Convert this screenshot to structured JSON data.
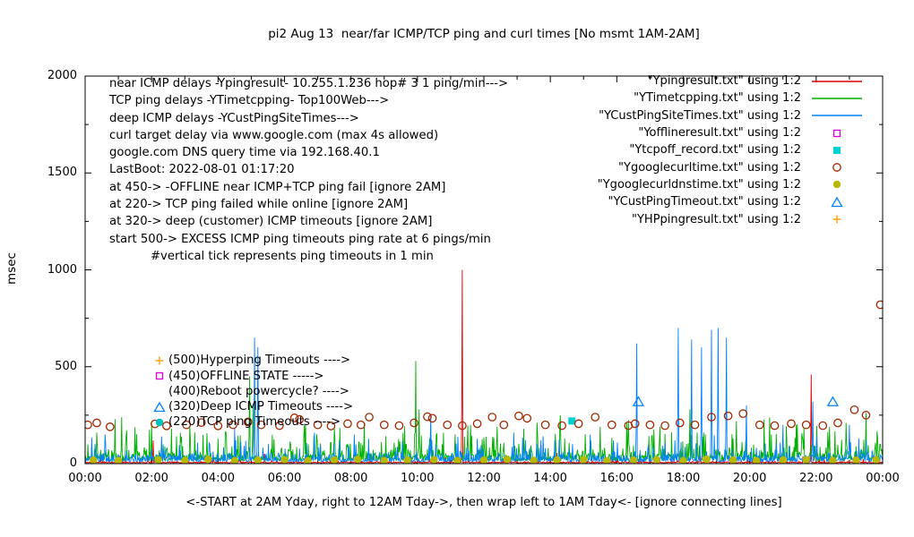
{
  "chart_data": {
    "type": "line",
    "title": "pi2 Aug 13  near/far ICMP/TCP ping and curl times [No msmt 1AM-2AM]",
    "ylabel": "msec",
    "xlabel": "<-START at 2AM Yday, right to 12AM Tday->, then wrap left to 1AM Tday<- [ignore connecting lines]",
    "ylim": [
      0,
      2000
    ],
    "xlim_hours": [
      0,
      24
    ],
    "yticks": [
      0,
      500,
      1000,
      1500,
      2000
    ],
    "xticks": [
      "00:00",
      "02:00",
      "04:00",
      "06:00",
      "08:00",
      "10:00",
      "12:00",
      "14:00",
      "16:00",
      "18:00",
      "20:00",
      "22:00",
      "00:00"
    ],
    "legend_position": "top-right",
    "grid": false,
    "series": [
      {
        "name": "Ypingresult",
        "style": "line",
        "color": "#e00000",
        "seed": 11,
        "baseline": {
          "base": 4,
          "noise": 9,
          "spike_prob": 0.04,
          "spike_scale": 60
        },
        "spikes": [
          [
            2.05,
            120
          ],
          [
            11.35,
            1000
          ],
          [
            21.85,
            460
          ]
        ]
      },
      {
        "name": "YTimetcpping",
        "style": "line",
        "color": "#00b000",
        "seed": 22,
        "baseline": {
          "base": 15,
          "noise": 55,
          "spike_prob": 0.3,
          "spike_scale": 200
        },
        "spikes": [
          [
            0.35,
            160
          ],
          [
            0.9,
            230
          ],
          [
            1.1,
            240
          ],
          [
            2.0,
            210
          ],
          [
            2.6,
            180
          ],
          [
            3.3,
            160
          ],
          [
            4.95,
            450
          ],
          [
            5.05,
            300
          ],
          [
            6.6,
            200
          ],
          [
            7.5,
            180
          ],
          [
            8.4,
            210
          ],
          [
            9.95,
            530
          ],
          [
            10.05,
            280
          ],
          [
            11.6,
            200
          ],
          [
            12.4,
            190
          ],
          [
            13.2,
            180
          ],
          [
            14.3,
            250
          ],
          [
            15.5,
            190
          ],
          [
            16.3,
            210
          ],
          [
            17.3,
            190
          ],
          [
            18.2,
            280
          ],
          [
            19.6,
            220
          ],
          [
            20.6,
            240
          ],
          [
            21.4,
            200
          ],
          [
            22.4,
            190
          ],
          [
            22.9,
            210
          ],
          [
            23.5,
            260
          ]
        ]
      },
      {
        "name": "YCustPingSiteTimes",
        "style": "line",
        "color": "#0080ff",
        "seed": 33,
        "baseline": {
          "base": 10,
          "noise": 45,
          "spike_prob": 0.22,
          "spike_scale": 130
        },
        "spikes": [
          [
            0.6,
            150
          ],
          [
            2.3,
            140
          ],
          [
            4.5,
            180
          ],
          [
            5.1,
            650
          ],
          [
            5.2,
            600
          ],
          [
            6.9,
            160
          ],
          [
            8.1,
            150
          ],
          [
            10.4,
            250
          ],
          [
            12.9,
            160
          ],
          [
            15.2,
            150
          ],
          [
            16.6,
            620
          ],
          [
            17.85,
            700
          ],
          [
            18.25,
            640
          ],
          [
            18.55,
            600
          ],
          [
            18.85,
            690
          ],
          [
            19.05,
            700
          ],
          [
            19.3,
            650
          ],
          [
            19.9,
            300
          ],
          [
            21.0,
            200
          ],
          [
            21.9,
            320
          ],
          [
            23.0,
            200
          ]
        ]
      },
      {
        "name": "Yofflineresult",
        "style": "points",
        "marker": "open-square",
        "color": "#e000e0",
        "points": []
      },
      {
        "name": "Ytcpoff_record",
        "style": "points",
        "marker": "filled-square",
        "color": "#00d0d0",
        "points": [
          [
            14.65,
            220
          ]
        ]
      },
      {
        "name": "Ygooglecurltime",
        "style": "points",
        "marker": "open-circle",
        "color": "#a02800",
        "points": [
          [
            0.08,
            200
          ],
          [
            0.35,
            210
          ],
          [
            0.75,
            190
          ],
          [
            2.1,
            205
          ],
          [
            2.45,
            195
          ],
          [
            3.05,
            200
          ],
          [
            3.5,
            212
          ],
          [
            4.0,
            195
          ],
          [
            4.45,
            200
          ],
          [
            4.9,
            215
          ],
          [
            5.3,
            200
          ],
          [
            5.85,
            196
          ],
          [
            6.3,
            236
          ],
          [
            6.45,
            228
          ],
          [
            7.0,
            200
          ],
          [
            7.4,
            194
          ],
          [
            7.9,
            206
          ],
          [
            8.3,
            200
          ],
          [
            8.55,
            240
          ],
          [
            9.0,
            200
          ],
          [
            9.45,
            196
          ],
          [
            9.9,
            210
          ],
          [
            10.3,
            242
          ],
          [
            10.45,
            234
          ],
          [
            10.9,
            200
          ],
          [
            11.35,
            196
          ],
          [
            11.8,
            206
          ],
          [
            12.25,
            240
          ],
          [
            12.6,
            200
          ],
          [
            13.05,
            246
          ],
          [
            13.3,
            234
          ],
          [
            13.85,
            200
          ],
          [
            14.35,
            196
          ],
          [
            14.85,
            206
          ],
          [
            15.35,
            240
          ],
          [
            15.85,
            200
          ],
          [
            16.35,
            196
          ],
          [
            16.55,
            206
          ],
          [
            17.0,
            200
          ],
          [
            17.45,
            196
          ],
          [
            17.9,
            210
          ],
          [
            18.35,
            200
          ],
          [
            18.85,
            240
          ],
          [
            19.35,
            246
          ],
          [
            19.8,
            258
          ],
          [
            20.3,
            200
          ],
          [
            20.75,
            196
          ],
          [
            21.25,
            206
          ],
          [
            21.7,
            200
          ],
          [
            22.2,
            196
          ],
          [
            22.65,
            210
          ],
          [
            23.15,
            278
          ],
          [
            23.5,
            250
          ],
          [
            23.93,
            820
          ]
        ]
      },
      {
        "name": "Ygooglecurldnstime",
        "style": "points",
        "marker": "filled-circle",
        "color": "#b8b800",
        "points": [
          [
            0.25,
            18
          ],
          [
            1.0,
            15
          ],
          [
            2.2,
            20
          ],
          [
            3.0,
            16
          ],
          [
            3.7,
            22
          ],
          [
            4.5,
            15
          ],
          [
            5.2,
            18
          ],
          [
            6.0,
            20
          ],
          [
            6.7,
            15
          ],
          [
            7.5,
            18
          ],
          [
            8.2,
            22
          ],
          [
            9.0,
            16
          ],
          [
            9.7,
            18
          ],
          [
            10.5,
            20
          ],
          [
            11.2,
            15
          ],
          [
            12.0,
            18
          ],
          [
            12.7,
            22
          ],
          [
            13.5,
            16
          ],
          [
            14.2,
            18
          ],
          [
            15.0,
            20
          ],
          [
            15.7,
            15
          ],
          [
            16.5,
            18
          ],
          [
            17.2,
            20
          ],
          [
            18.0,
            16
          ],
          [
            18.7,
            22
          ],
          [
            19.5,
            18
          ],
          [
            20.2,
            15
          ],
          [
            21.0,
            18
          ],
          [
            21.7,
            20
          ],
          [
            22.5,
            16
          ],
          [
            23.2,
            18
          ],
          [
            23.8,
            20
          ]
        ]
      },
      {
        "name": "YCustPingTimeout",
        "style": "points",
        "marker": "open-triangle",
        "color": "#0080ff",
        "points": [
          [
            16.65,
            320
          ],
          [
            22.5,
            320
          ]
        ]
      },
      {
        "name": "YHPpingresult",
        "style": "points",
        "marker": "plus",
        "color": "#ffa820",
        "points": []
      }
    ]
  },
  "legend": [
    {
      "label": "\"Ypingresult.txt\" using 1:2",
      "style": "line",
      "marker": "line",
      "color": "#e00000"
    },
    {
      "label": "\"YTimetcpping.txt\" using 1:2",
      "style": "line",
      "marker": "line",
      "color": "#00b000"
    },
    {
      "label": "\"YCustPingSiteTimes.txt\" using 1:2",
      "style": "line",
      "marker": "line",
      "color": "#0080ff"
    },
    {
      "label": "\"Yofflineresult.txt\" using 1:2",
      "style": "points",
      "marker": "open-square",
      "color": "#e000e0"
    },
    {
      "label": "\"Ytcpoff_record.txt\" using 1:2",
      "style": "points",
      "marker": "filled-square",
      "color": "#00d0d0"
    },
    {
      "label": "\"Ygooglecurltime.txt\" using 1:2",
      "style": "points",
      "marker": "open-circle",
      "color": "#a02800"
    },
    {
      "label": "\"Ygooglecurldnstime.txt\" using 1:2",
      "style": "points",
      "marker": "filled-circle",
      "color": "#b8b800"
    },
    {
      "label": "\"YCustPingTimeout.txt\" using 1:2",
      "style": "points",
      "marker": "open-triangle",
      "color": "#0080ff"
    },
    {
      "label": "\"YHPpingresult.txt\" using 1:2",
      "style": "points",
      "marker": "plus",
      "color": "#ffa820"
    }
  ],
  "annotations": {
    "info_lines": [
      {
        "text": "near ICMP delays -Ypingresult- 10.255.1.236 hop# 3 1 ping/min--->",
        "indent": false
      },
      {
        "text": "TCP ping delays -YTimetcpping- Top100Web--->",
        "indent": false
      },
      {
        "text": "deep ICMP delays -YCustPingSiteTimes--->",
        "indent": false
      },
      {
        "text": "curl target delay via www.google.com (max 4s allowed)",
        "indent": false
      },
      {
        "text": "google.com DNS query time via 192.168.40.1",
        "indent": false
      },
      {
        "text": "LastBoot: 2022-08-01 01:17:20",
        "indent": false
      },
      {
        "text": "at 450-> -OFFLINE near ICMP+TCP ping fail [ignore 2AM]",
        "indent": false
      },
      {
        "text": "at 220-> TCP ping failed while online [ignore 2AM]",
        "indent": false
      },
      {
        "text": "at 320-> deep (customer) ICMP timeouts [ignore 2AM]",
        "indent": false
      },
      {
        "text": "start 500-> EXCESS ICMP ping timeouts ping rate at 6 pings/min",
        "indent": false
      },
      {
        "text": "#vertical tick represents ping timeouts in 1 min",
        "indent": true
      }
    ],
    "level_labels": [
      {
        "text": "(500)Hyperping Timeouts ---->",
        "value": 500,
        "marker": "plus",
        "color": "#ffa820"
      },
      {
        "text": "(450)OFFLINE STATE ----->",
        "value": 450,
        "marker": "open-square",
        "color": "#e000e0"
      },
      {
        "text": "(400)Reboot powercycle? ---->",
        "value": 400,
        "marker": "none",
        "color": "#000000"
      },
      {
        "text": "(320)Deep ICMP Timeouts ---->",
        "value": 320,
        "marker": "open-triangle",
        "color": "#0080ff"
      },
      {
        "text": "(220)TCP ping Timeouts ---->",
        "value": 220,
        "marker": "filled-circle",
        "color": "#00c0c0"
      }
    ]
  }
}
